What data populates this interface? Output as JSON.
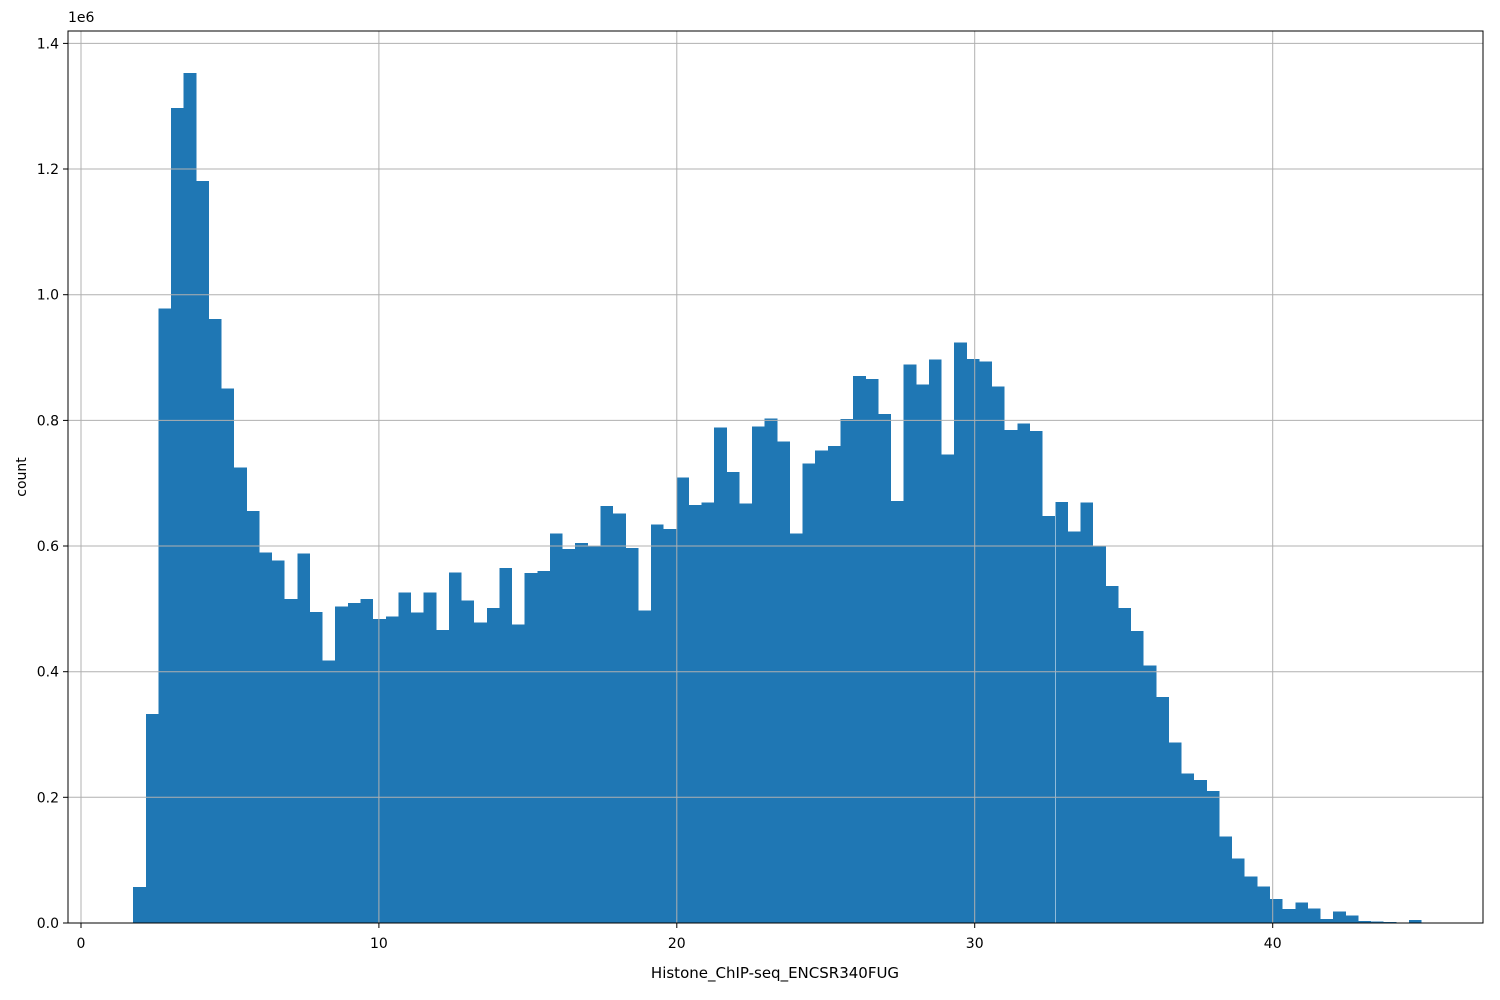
{
  "chart_data": {
    "type": "bar",
    "subtype": "histogram",
    "title": "",
    "xlabel": "Histone_ChIP-seq_ENCSR340FUG",
    "ylabel": "count",
    "y_offset_label": "1e6",
    "y_scale": 1000000,
    "bar_color": "#1f77b4",
    "grid_color": "#b0b0b0",
    "spine_color": "#000000",
    "grid_on": true,
    "legend": null,
    "xlim": [
      -0.436,
      47.06
    ],
    "ylim": [
      0,
      1.4197
    ],
    "xticks": {
      "values": [
        0,
        10,
        20,
        30,
        40
      ],
      "labels": [
        "0",
        "10",
        "20",
        "30",
        "40"
      ]
    },
    "yticks": {
      "values": [
        0,
        0.2,
        0.4,
        0.6,
        0.8,
        1.0,
        1.2,
        1.4
      ],
      "labels": [
        "0.0",
        "0.2",
        "0.4",
        "0.6",
        "0.8",
        "1.0",
        "1.2",
        "1.4"
      ]
    },
    "bin_start": 1.75,
    "bin_width": 0.424,
    "counts_e6": [
      0.057,
      0.333,
      0.978,
      1.297,
      1.353,
      1.181,
      0.961,
      0.851,
      0.725,
      0.656,
      0.59,
      0.577,
      0.516,
      0.588,
      0.495,
      0.418,
      0.504,
      0.509,
      0.516,
      0.484,
      0.488,
      0.526,
      0.494,
      0.526,
      0.466,
      0.558,
      0.513,
      0.478,
      0.501,
      0.565,
      0.475,
      0.557,
      0.56,
      0.62,
      0.595,
      0.605,
      0.599,
      0.664,
      0.652,
      0.597,
      0.497,
      0.634,
      0.627,
      0.709,
      0.665,
      0.669,
      0.789,
      0.718,
      0.668,
      0.79,
      0.803,
      0.766,
      0.62,
      0.731,
      0.752,
      0.759,
      0.802,
      0.871,
      0.866,
      0.81,
      0.672,
      0.889,
      0.857,
      0.897,
      0.746,
      0.924,
      0.898,
      0.894,
      0.854,
      0.785,
      0.795,
      0.783,
      0.648,
      0.67,
      0.623,
      0.669,
      0.601,
      0.536,
      0.501,
      0.465,
      0.41,
      0.36,
      0.287,
      0.238,
      0.228,
      0.21,
      0.138,
      0.103,
      0.074,
      0.058,
      0.038,
      0.022,
      0.033,
      0.023,
      0.006,
      0.018,
      0.012,
      0.003,
      0.002,
      0.0015,
      0.001,
      0.005
    ]
  }
}
